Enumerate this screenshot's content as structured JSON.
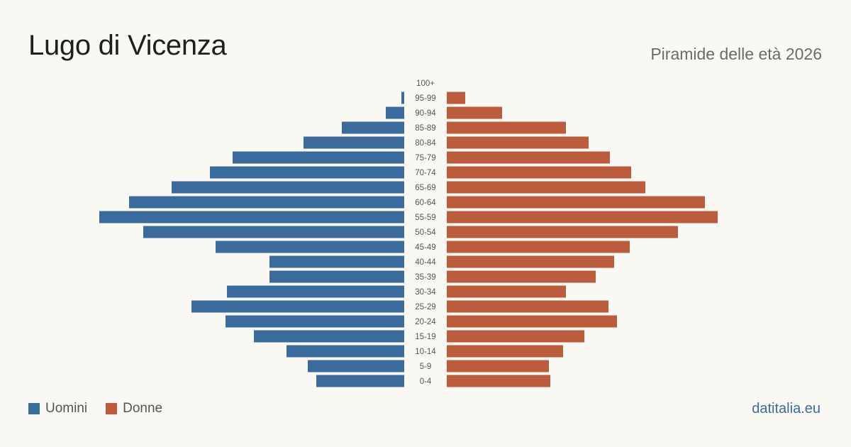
{
  "title": "Lugo di Vicenza",
  "subtitle": "Piramide delle età 2026",
  "brand": "datitalia.eu",
  "colors": {
    "men": "#3b6a9c",
    "women": "#bb5d3c",
    "background": "#faf8f3"
  },
  "legend": {
    "men_label": "Uomini",
    "women_label": "Donne"
  },
  "chart_data": {
    "type": "bar",
    "orientation": "horizontal-pyramid",
    "title": "Lugo di Vicenza",
    "subtitle": "Piramide delle età 2026",
    "categories": [
      "0-4",
      "5-9",
      "10-14",
      "15-19",
      "20-24",
      "25-29",
      "30-34",
      "35-39",
      "40-44",
      "45-49",
      "50-54",
      "55-59",
      "60-64",
      "65-69",
      "70-74",
      "75-79",
      "80-84",
      "85-89",
      "90-94",
      "95-99",
      "100+"
    ],
    "series": [
      {
        "name": "Uomini",
        "values": [
          62,
          68,
          83,
          106,
          126,
          150,
          125,
          95,
          95,
          133,
          184,
          215,
          194,
          164,
          137,
          121,
          71,
          44,
          13,
          2,
          0
        ]
      },
      {
        "name": "Donne",
        "values": [
          73,
          72,
          82,
          97,
          120,
          114,
          84,
          105,
          118,
          129,
          163,
          191,
          182,
          140,
          130,
          115,
          100,
          84,
          39,
          13,
          0
        ]
      }
    ],
    "legend_position": "bottom-left",
    "grid": false
  }
}
